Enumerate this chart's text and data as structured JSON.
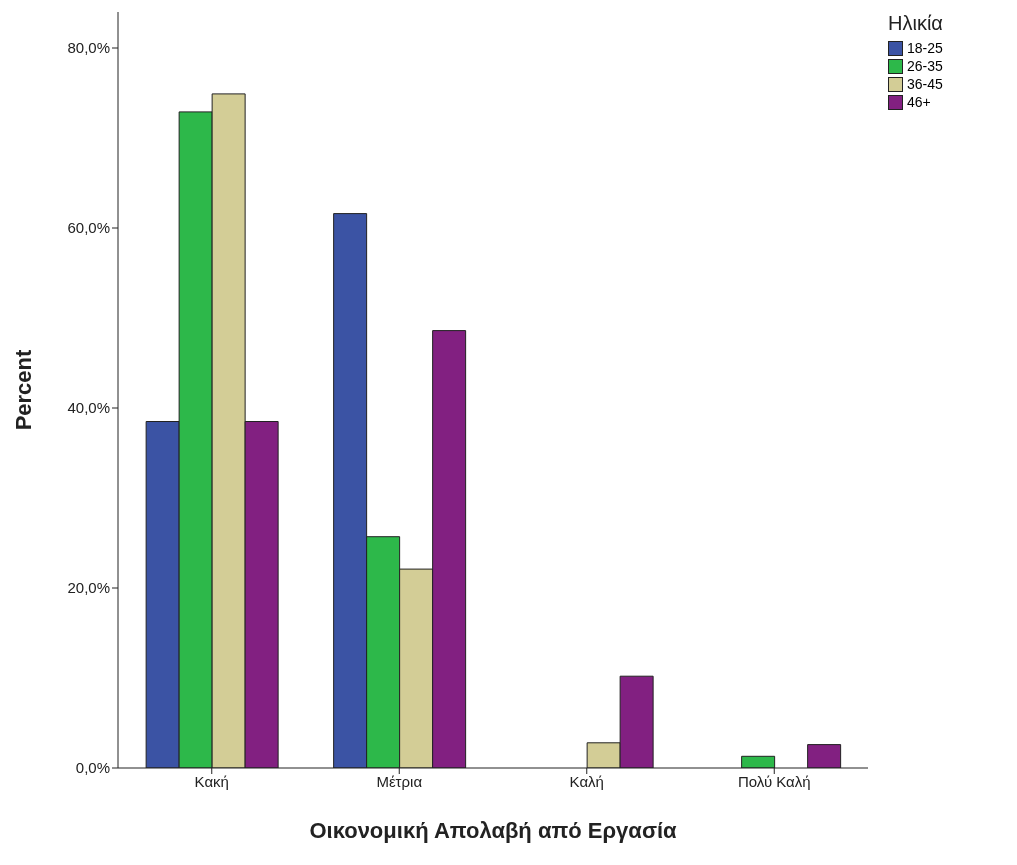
{
  "chart_data": {
    "type": "bar",
    "xlabel": "Οικονομική Απολαβή από Εργασία",
    "ylabel": "Percent",
    "legend_title": "Ηλικία",
    "categories": [
      "Κακή",
      "Μέτρια",
      "Καλή",
      "Πολύ Καλή"
    ],
    "series": [
      {
        "name": "18-25",
        "color": "#3b53a4",
        "values": [
          38.5,
          61.6,
          0,
          0
        ]
      },
      {
        "name": "26-35",
        "color": "#2db84a",
        "values": [
          72.9,
          25.7,
          0,
          1.3
        ]
      },
      {
        "name": "36-45",
        "color": "#d3cd96",
        "values": [
          74.9,
          22.1,
          2.8,
          0
        ]
      },
      {
        "name": "46+",
        "color": "#822081",
        "values": [
          38.5,
          48.6,
          10.2,
          2.6
        ]
      }
    ],
    "ylim": [
      0,
      84
    ],
    "yticks": [
      {
        "value": 0,
        "label": "0,0%"
      },
      {
        "value": 20,
        "label": "20,0%"
      },
      {
        "value": 40,
        "label": "40,0%"
      },
      {
        "value": 60,
        "label": "60,0%"
      },
      {
        "value": 80,
        "label": "80,0%"
      }
    ],
    "grid": false,
    "legend": "top right"
  }
}
